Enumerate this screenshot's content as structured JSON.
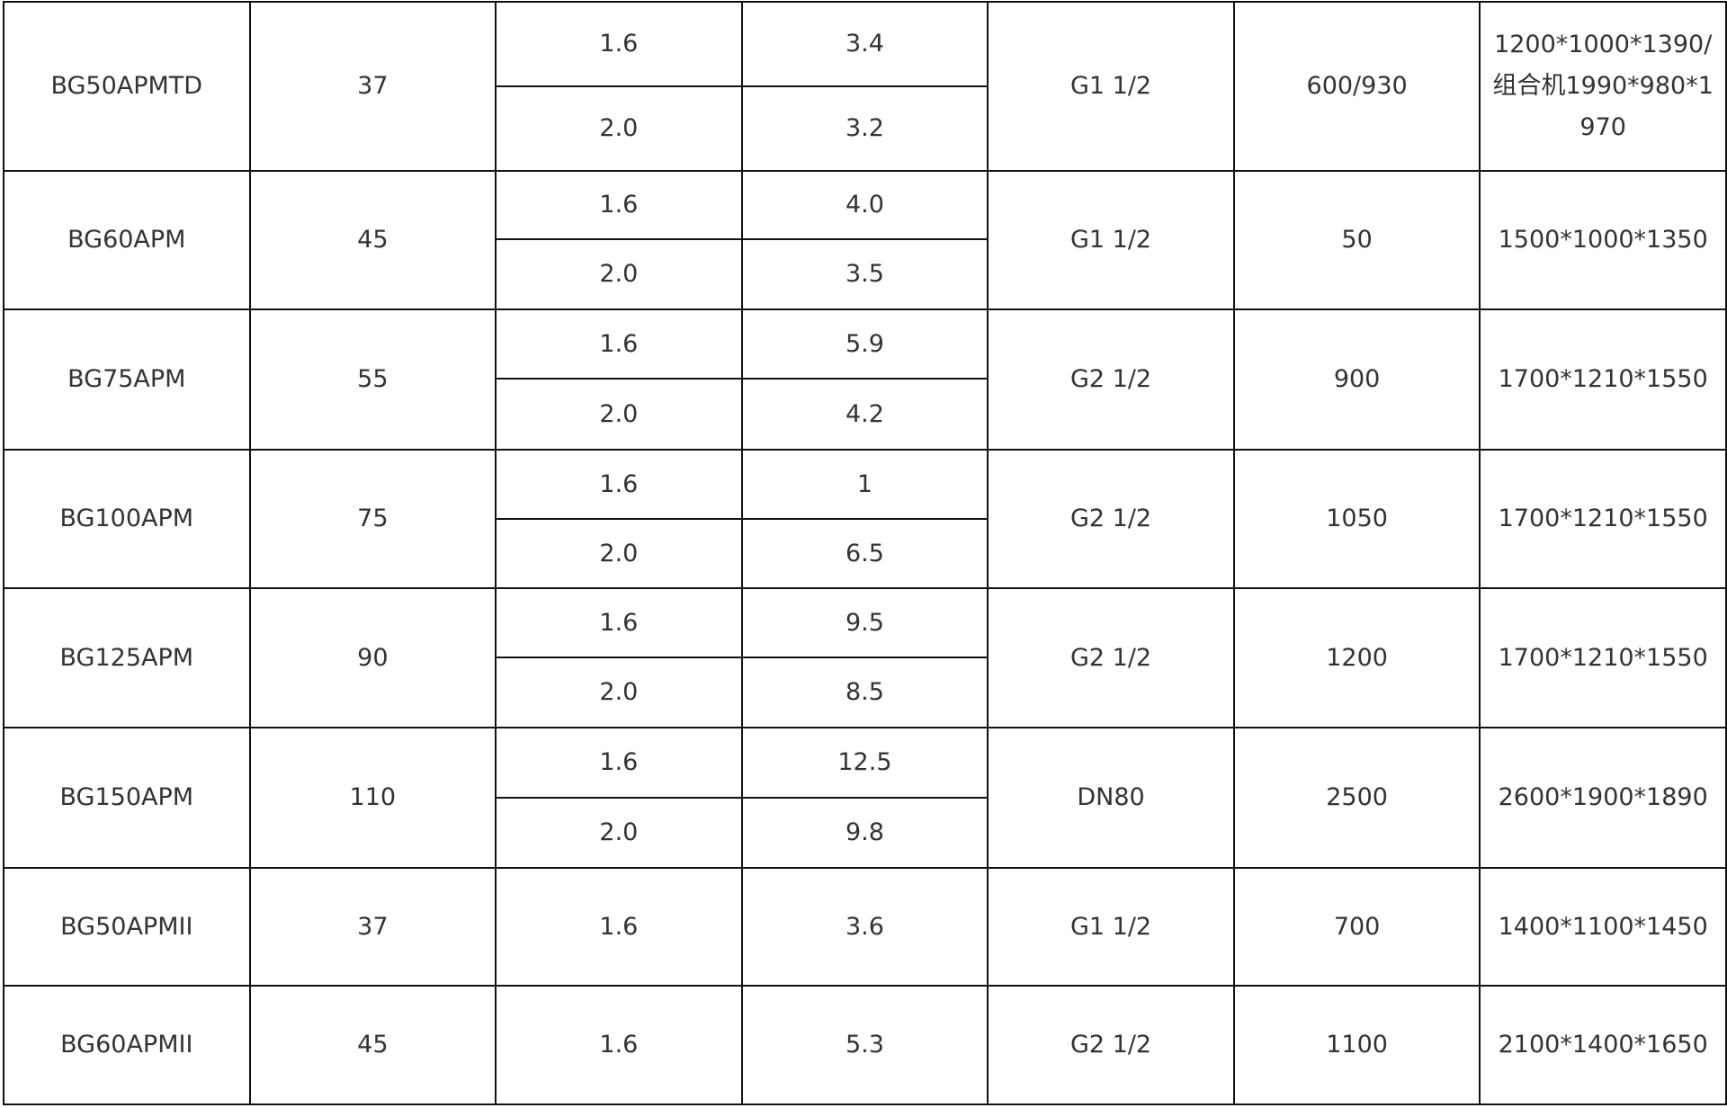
{
  "table": {
    "rows": [
      {
        "model": "BG50APMTD",
        "power": "37",
        "entries": [
          {
            "pressure": "1.6",
            "flow": "3.4"
          },
          {
            "pressure": "2.0",
            "flow": "3.2"
          }
        ],
        "connection": "G1 1/2",
        "weight": "600/930",
        "dimensions": "1200*1000*1390/组合机1990*980*1970"
      },
      {
        "model": "BG60APM",
        "power": "45",
        "entries": [
          {
            "pressure": "1.6",
            "flow": "4.0"
          },
          {
            "pressure": "2.0",
            "flow": "3.5"
          }
        ],
        "connection": "G1 1/2",
        "weight": "50",
        "dimensions": "1500*1000*1350"
      },
      {
        "model": "BG75APM",
        "power": "55",
        "entries": [
          {
            "pressure": "1.6",
            "flow": "5.9"
          },
          {
            "pressure": "2.0",
            "flow": "4.2"
          }
        ],
        "connection": "G2 1/2",
        "weight": "900",
        "dimensions": "1700*1210*1550"
      },
      {
        "model": "BG100APM",
        "power": "75",
        "entries": [
          {
            "pressure": "1.6",
            "flow": "1"
          },
          {
            "pressure": "2.0",
            "flow": "6.5"
          }
        ],
        "connection": "G2 1/2",
        "weight": "1050",
        "dimensions": "1700*1210*1550"
      },
      {
        "model": "BG125APM",
        "power": "90",
        "entries": [
          {
            "pressure": "1.6",
            "flow": "9.5"
          },
          {
            "pressure": "2.0",
            "flow": "8.5"
          }
        ],
        "connection": "G2 1/2",
        "weight": "1200",
        "dimensions": "1700*1210*1550"
      },
      {
        "model": "BG150APM",
        "power": "110",
        "entries": [
          {
            "pressure": "1.6",
            "flow": "12.5"
          },
          {
            "pressure": "2.0",
            "flow": "9.8"
          }
        ],
        "connection": "DN80",
        "weight": "2500",
        "dimensions": "2600*1900*1890"
      },
      {
        "model": "BG50APMII",
        "power": "37",
        "entries": [
          {
            "pressure": "1.6",
            "flow": "3.6"
          }
        ],
        "connection": "G1 1/2",
        "weight": "700",
        "dimensions": "1400*1100*1450"
      },
      {
        "model": "BG60APMII",
        "power": "45",
        "entries": [
          {
            "pressure": "1.6",
            "flow": "5.3"
          }
        ],
        "connection": "G2 1/2",
        "weight": "1100",
        "dimensions": "2100*1400*1650"
      }
    ]
  }
}
